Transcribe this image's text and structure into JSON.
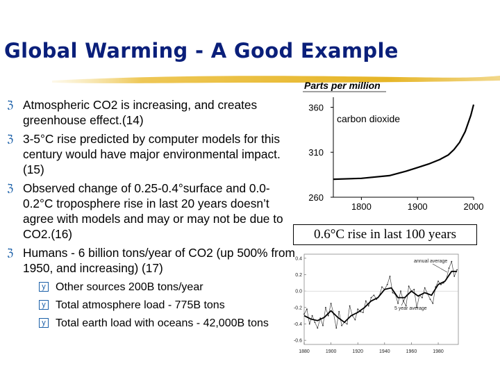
{
  "slide": {
    "title": "Global Warming - A Good Example",
    "bullets": [
      "Atmospheric CO2 is increasing, and creates greenhouse effect.(14)",
      "3-5°C rise predicted by computer models for this century would have major environmental impact. (15)",
      "Observed change of 0.25-0.4°surface and 0.0-0.2°C troposphere rise in last 20 years doesn’t agree with models and may or may not be due to CO2.(16)",
      "Humans - 6 billion tons/year of CO2 (up 500% from 1950, and increasing) (17)"
    ],
    "sub_bullets": [
      "Other sources 200B tons/year",
      "Total atmosphere load - 775B tons",
      "Total earth load with oceans - 42,000B tons"
    ],
    "callout": "0.6°C rise in last 100 years"
  },
  "chart_data": [
    {
      "type": "line",
      "title": "Parts per million",
      "series": [
        {
          "name": "carbon dioxide",
          "x": [
            1750,
            1800,
            1850,
            1880,
            1900,
            1920,
            1940,
            1955,
            1965,
            1975,
            1985,
            1995,
            2000
          ],
          "values": [
            280,
            281,
            284,
            289,
            293,
            297,
            302,
            307,
            313,
            321,
            333,
            351,
            363
          ]
        }
      ],
      "xticks": [
        "1800",
        "1900",
        "2000"
      ],
      "yticks": [
        "360",
        "310",
        "260"
      ],
      "xlim": [
        1750,
        2000
      ],
      "ylim": [
        260,
        365
      ]
    },
    {
      "type": "line",
      "series": [
        {
          "name": "annual average",
          "x": [
            1880,
            1882,
            1884,
            1886,
            1888,
            1890,
            1892,
            1894,
            1896,
            1898,
            1900,
            1902,
            1904,
            1906,
            1908,
            1910,
            1912,
            1914,
            1916,
            1918,
            1920,
            1922,
            1924,
            1926,
            1928,
            1930,
            1932,
            1934,
            1936,
            1938,
            1940,
            1942,
            1944,
            1946,
            1948,
            1950,
            1952,
            1954,
            1956,
            1958,
            1960,
            1962,
            1964,
            1966,
            1968,
            1970,
            1972,
            1974,
            1976,
            1978,
            1980,
            1982,
            1984,
            1986,
            1988,
            1990,
            1992,
            1994
          ],
          "values": [
            -0.28,
            -0.22,
            -0.4,
            -0.3,
            -0.38,
            -0.45,
            -0.33,
            -0.42,
            -0.2,
            -0.3,
            -0.15,
            -0.28,
            -0.45,
            -0.25,
            -0.42,
            -0.38,
            -0.4,
            -0.18,
            -0.3,
            -0.35,
            -0.22,
            -0.25,
            -0.26,
            -0.12,
            -0.18,
            -0.08,
            -0.05,
            -0.1,
            -0.06,
            0.05,
            0.02,
            0.08,
            0.18,
            -0.02,
            -0.04,
            -0.15,
            0.0,
            -0.12,
            -0.18,
            0.06,
            0.0,
            0.02,
            -0.2,
            -0.05,
            -0.08,
            0.04,
            -0.03,
            -0.1,
            -0.15,
            0.05,
            0.12,
            0.08,
            0.1,
            0.14,
            0.28,
            0.36,
            0.18,
            0.26
          ]
        },
        {
          "name": "5 year average",
          "x": [
            1880,
            1885,
            1890,
            1895,
            1900,
            1905,
            1910,
            1915,
            1920,
            1925,
            1930,
            1935,
            1940,
            1945,
            1950,
            1955,
            1960,
            1965,
            1970,
            1975,
            1980,
            1985,
            1990,
            1994
          ],
          "values": [
            -0.3,
            -0.34,
            -0.36,
            -0.32,
            -0.24,
            -0.32,
            -0.38,
            -0.3,
            -0.26,
            -0.2,
            -0.12,
            -0.08,
            0.02,
            0.04,
            -0.08,
            -0.08,
            0.0,
            -0.06,
            -0.02,
            -0.05,
            0.08,
            0.12,
            0.24,
            0.24
          ]
        }
      ],
      "xticks": [
        "1880",
        "1900",
        "1920",
        "1940",
        "1960",
        "1980"
      ],
      "yticks": [
        "0.4",
        "0.2",
        "0.0",
        "-0.2",
        "-0.4",
        "-0.6"
      ],
      "annotations": [
        "annual average",
        "5 year average"
      ],
      "xlim": [
        1880,
        1995
      ],
      "ylim": [
        -0.65,
        0.45
      ]
    }
  ]
}
